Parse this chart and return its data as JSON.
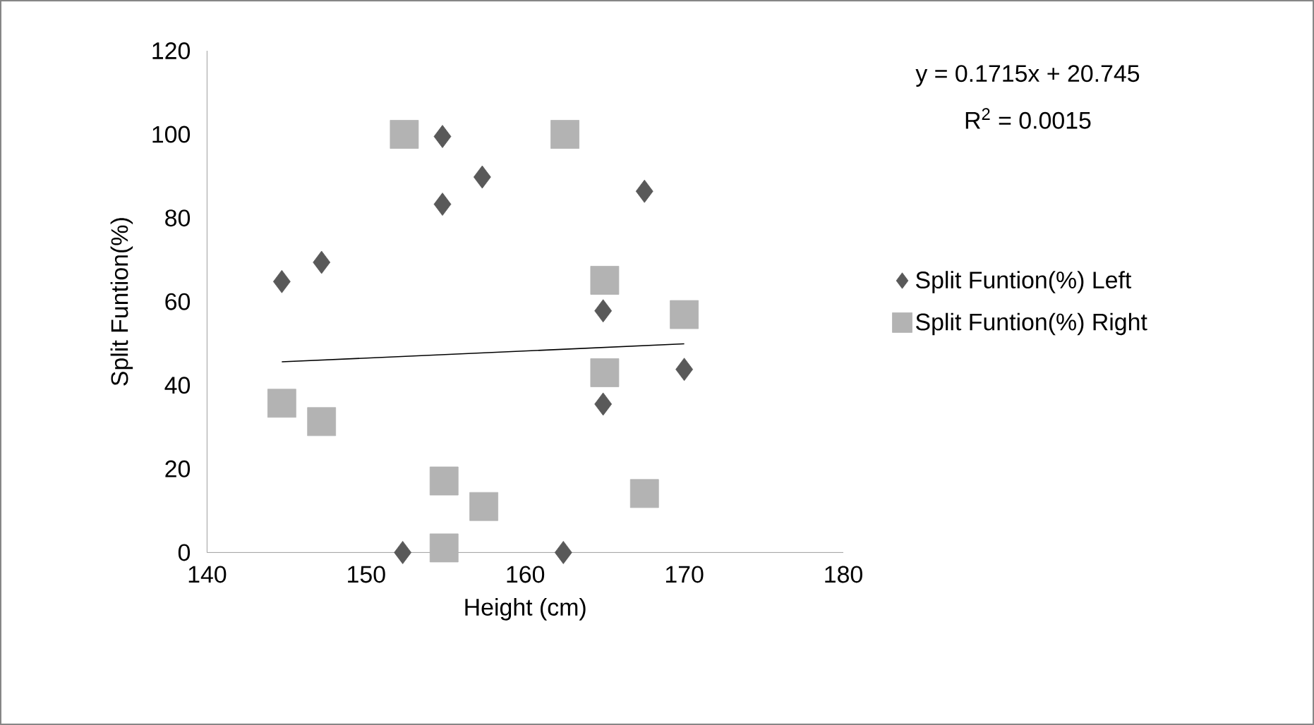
{
  "chart_data": {
    "type": "scatter",
    "xlabel": "Height (cm)",
    "ylabel": "Split Funtion(%)",
    "xlim": [
      140,
      180
    ],
    "xticks": [
      140,
      150,
      160,
      170,
      180
    ],
    "ylim": [
      0,
      120
    ],
    "yticks": [
      0,
      20,
      40,
      60,
      80,
      100,
      120
    ],
    "grid": false,
    "legend": "right",
    "annotations": [
      "y = 0.1715x + 20.745",
      "R$^{2}$ = 0.0015"
    ],
    "series": [
      {
        "name": "Split Funtion(%) Left",
        "color": "#595959",
        "marker": "diamond",
        "x": [
          144.7,
          147.2,
          152.3,
          154.8,
          154.8,
          157.3,
          162.4,
          164.9,
          164.9,
          167.5,
          170
        ],
        "values": [
          64.8,
          69.4,
          0,
          99.5,
          83.3,
          89.8,
          0,
          57.8,
          35.5,
          86.4,
          43.8
        ]
      },
      {
        "name": "Split Funtion(%) Right",
        "color": "#b3b3b3",
        "marker": "square",
        "x": [
          144.7,
          147.2,
          152.4,
          154.9,
          154.9,
          157.4,
          162.5,
          165,
          165,
          167.5,
          170
        ],
        "values": [
          35.7,
          31.3,
          100,
          17.1,
          1.1,
          11.0,
          100,
          65.1,
          43.0,
          14.1,
          56.9
        ]
      },
      {
        "type": "line",
        "color": "#000000",
        "line_style": "solid",
        "marker": "none",
        "x": [
          144.7,
          170
        ],
        "values": [
          45.6,
          49.9
        ]
      }
    ]
  }
}
